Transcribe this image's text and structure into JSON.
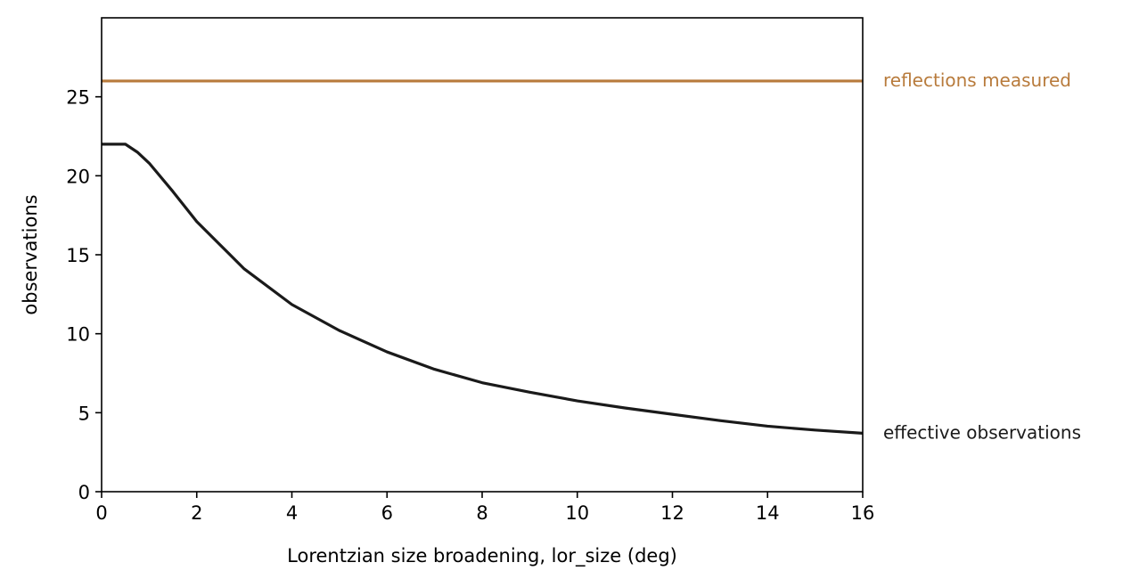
{
  "chart_data": {
    "type": "line",
    "xlabel": "Lorentzian size broadening, lor_size (deg)",
    "ylabel": "observations",
    "xlim": [
      0,
      16
    ],
    "ylim": [
      0,
      30
    ],
    "xticks": [
      0,
      2,
      4,
      6,
      8,
      10,
      12,
      14,
      16
    ],
    "yticks": [
      0,
      5,
      10,
      15,
      20,
      25
    ],
    "grid": false,
    "legend": "none",
    "series": [
      {
        "name": "effective observations",
        "color": "#1a1a1a",
        "x": [
          0,
          0.5,
          0.75,
          1,
          1.5,
          2,
          2.5,
          3,
          4,
          5,
          6,
          7,
          8,
          9,
          10,
          11,
          12,
          13,
          14,
          15,
          16
        ],
        "y": [
          22.0,
          22.0,
          21.5,
          20.8,
          19.0,
          17.1,
          15.6,
          14.1,
          11.85,
          10.2,
          8.85,
          7.75,
          6.9,
          6.3,
          5.75,
          5.3,
          4.9,
          4.5,
          4.15,
          3.9,
          3.7
        ]
      },
      {
        "name": "reflections measured",
        "color": "#b87b3c",
        "x": [
          0,
          16
        ],
        "y": [
          26,
          26
        ]
      }
    ]
  }
}
